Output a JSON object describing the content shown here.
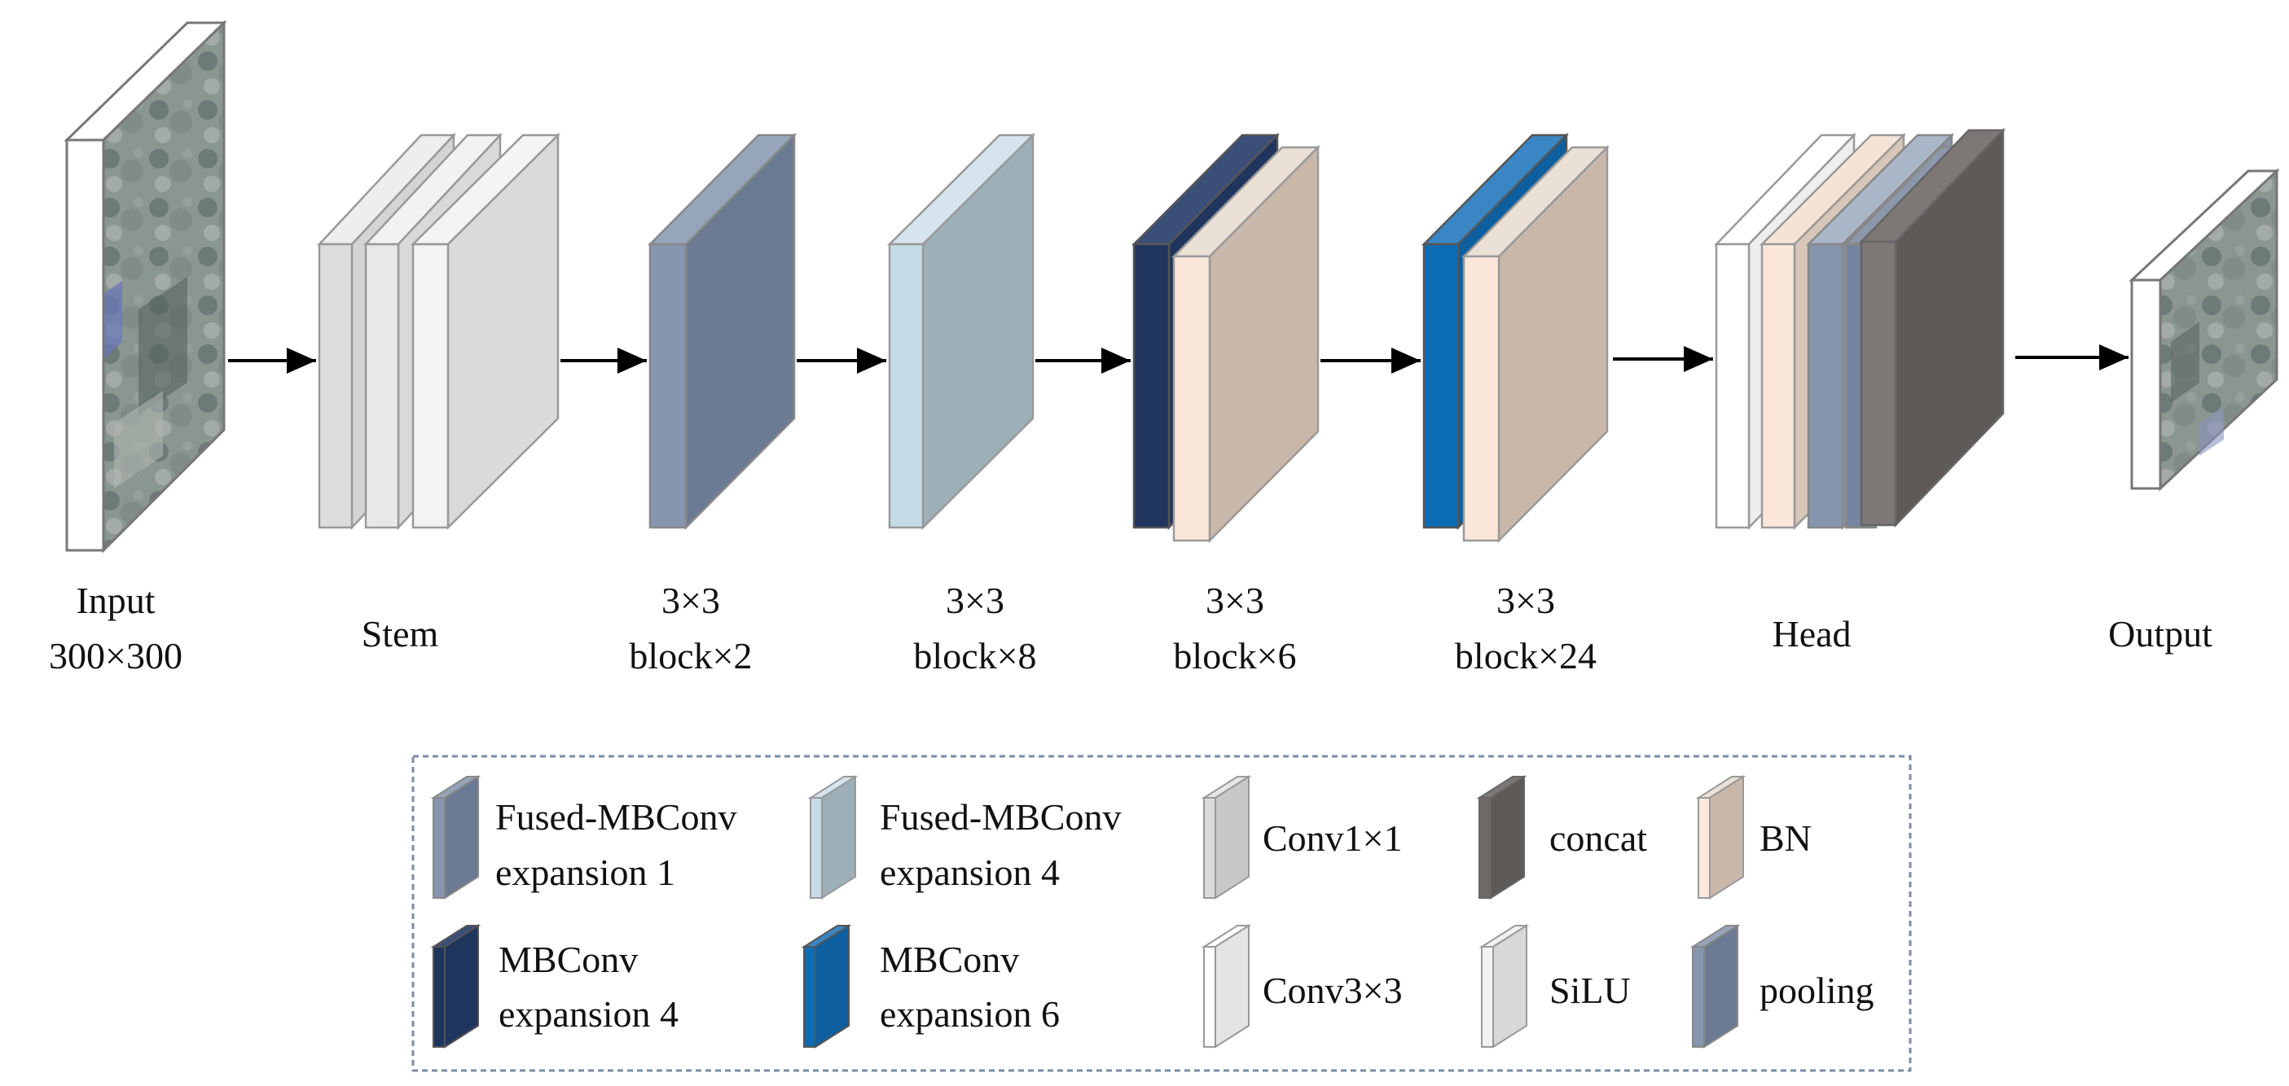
{
  "stages": {
    "input": {
      "line1": "Input",
      "line2": "300×300"
    },
    "stem": {
      "line1": "Stem"
    },
    "stage1": {
      "line1": "3×3",
      "line2": "block×2"
    },
    "stage2": {
      "line1": "3×3",
      "line2": "block×8"
    },
    "stage3": {
      "line1": "3×3",
      "line2": "block×6"
    },
    "stage4": {
      "line1": "3×3",
      "line2": "block×24"
    },
    "head": {
      "line1": "Head"
    },
    "output": {
      "line1": "Output"
    }
  },
  "legend": {
    "fused1": {
      "line1": "Fused-MBConv",
      "line2": "expansion 1",
      "color": "#6b7b94"
    },
    "fused4": {
      "line1": "Fused-MBConv",
      "line2": "expansion 4",
      "color": "#9dafb9"
    },
    "conv1x1": {
      "line1": "Conv1×1",
      "color": "#c8c8c8"
    },
    "concat": {
      "line1": "concat",
      "color": "#5e5a57"
    },
    "bn": {
      "line1": "BN",
      "color": "#c9b8aa"
    },
    "mbconv4": {
      "line1": "MBConv",
      "line2": "expansion 4",
      "color": "#1f355e"
    },
    "mbconv6": {
      "line1": "MBConv",
      "line2": "expansion 6",
      "color": "#0d5fa0"
    },
    "conv3x3": {
      "line1": "Conv3×3",
      "color": "#e4e4e4"
    },
    "silu": {
      "line1": "SiLU",
      "color": "#d8d8d8"
    },
    "pooling": {
      "line1": "pooling",
      "color": "#6b7b94"
    }
  }
}
